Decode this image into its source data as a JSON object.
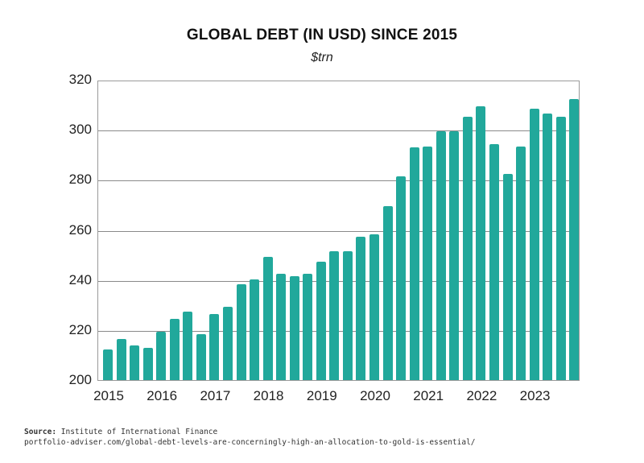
{
  "title": "GLOBAL DEBT (IN USD) SINCE 2015",
  "subtitle": "$trn",
  "footer": {
    "source_label": "Source:",
    "source_text": " Institute of International Finance",
    "url": "portfolio-adviser.com/global-debt-levels-are-concerningly-high-an-allocation-to-gold-is-essential/"
  },
  "colors": {
    "bar": "#21a89b",
    "grid": "#8a8a8a"
  },
  "chart_data": {
    "type": "bar",
    "title": "GLOBAL DEBT (IN USD) SINCE 2015",
    "subtitle": "$trn",
    "xlabel": "",
    "ylabel": "$trn",
    "ylim": [
      200,
      320
    ],
    "yticks": [
      200,
      220,
      240,
      260,
      280,
      300,
      320
    ],
    "xtick_labels": [
      "2015",
      "2016",
      "2017",
      "2018",
      "2019",
      "2020",
      "2021",
      "2022",
      "2023"
    ],
    "grid": true,
    "legend": null,
    "categories": [
      "2015 Q1",
      "2015 Q2",
      "2015 Q3",
      "2015 Q4",
      "2016 Q1",
      "2016 Q2",
      "2016 Q3",
      "2016 Q4",
      "2017 Q1",
      "2017 Q2",
      "2017 Q3",
      "2017 Q4",
      "2018 Q1",
      "2018 Q2",
      "2018 Q3",
      "2018 Q4",
      "2019 Q1",
      "2019 Q2",
      "2019 Q3",
      "2019 Q4",
      "2020 Q1",
      "2020 Q2",
      "2020 Q3",
      "2020 Q4",
      "2021 Q1",
      "2021 Q2",
      "2021 Q3",
      "2021 Q4",
      "2022 Q1",
      "2022 Q2",
      "2022 Q3",
      "2022 Q4",
      "2023 Q1",
      "2023 Q2",
      "2023 Q3",
      "2023 Q4"
    ],
    "values": [
      213,
      217,
      214.5,
      213.5,
      220,
      225,
      228,
      219,
      227,
      230,
      239,
      241,
      250,
      243,
      242,
      243,
      248,
      252,
      252,
      258,
      259,
      270,
      282,
      293.5,
      294,
      300,
      300,
      306,
      310,
      295,
      283,
      294,
      309,
      307,
      306,
      313
    ]
  }
}
